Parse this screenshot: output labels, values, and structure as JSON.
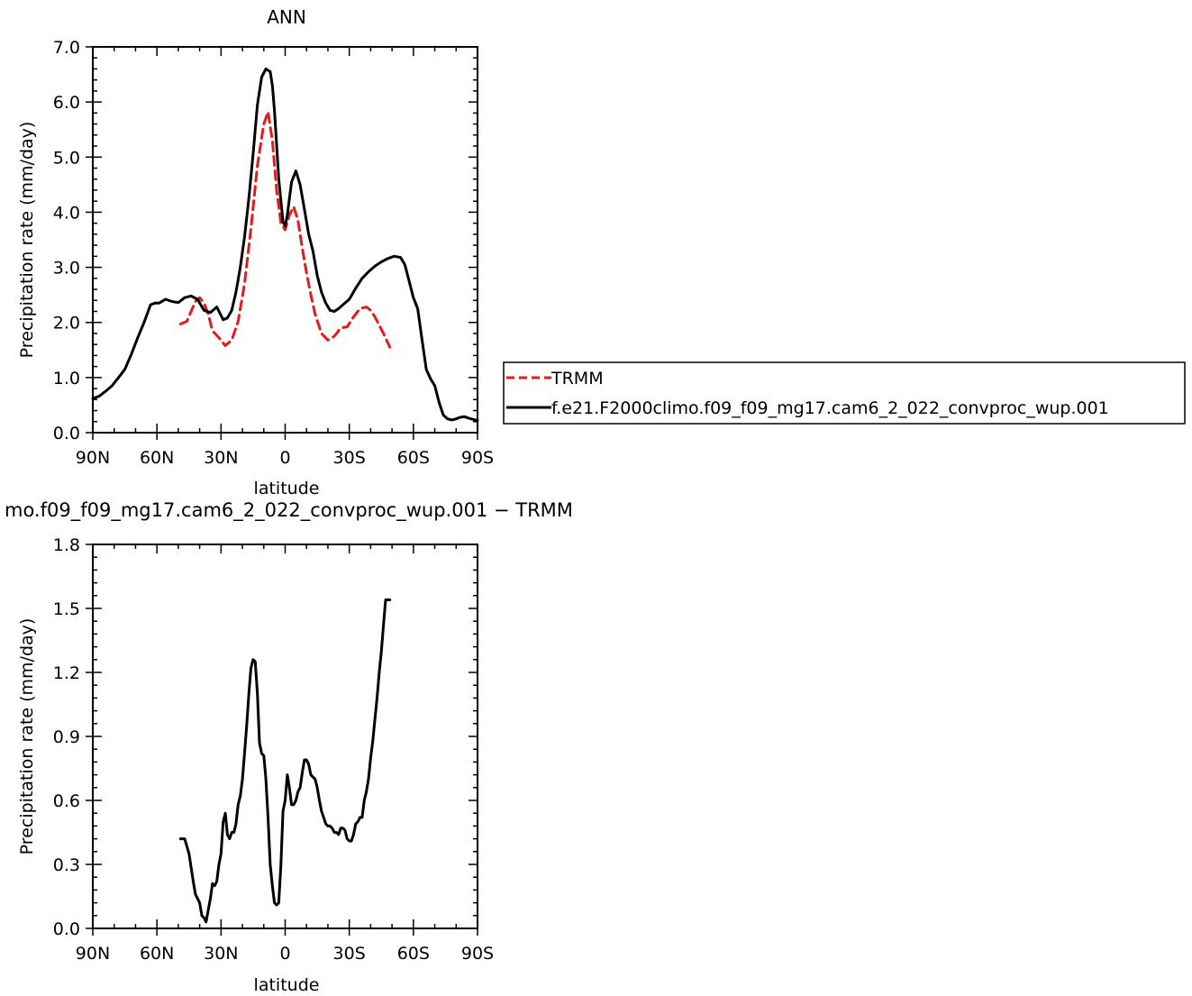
{
  "chart_data": [
    {
      "type": "line",
      "title": "ANN",
      "xlabel": "latitude",
      "ylabel": "Precipitation rate (mm/day)",
      "xlim": [
        -90,
        90
      ],
      "ylim": [
        0,
        7
      ],
      "xticks": [
        -90,
        -60,
        -30,
        0,
        30,
        60,
        90
      ],
      "xticklabels": [
        "90N",
        "60N",
        "30N",
        "0",
        "30S",
        "60S",
        "90S"
      ],
      "yticks": [
        0,
        1,
        2,
        3,
        4,
        5,
        6,
        7
      ],
      "yticklabels": [
        "0.0",
        "1.0",
        "2.0",
        "3.0",
        "4.0",
        "5.0",
        "6.0",
        "7.0"
      ],
      "legend": "right",
      "series": [
        {
          "name": "TRMM",
          "color": "#e41a1c",
          "dash": true,
          "x": [
            -49,
            -46,
            -44,
            -42,
            -40,
            -38,
            -36,
            -34,
            -31,
            -28,
            -25,
            -22,
            -19,
            -16,
            -13,
            -10,
            -8,
            -6,
            -4,
            -2,
            0,
            2,
            4,
            6,
            8,
            10,
            12,
            14,
            17,
            20,
            23,
            26,
            29,
            32,
            35,
            38,
            40,
            42,
            44,
            46,
            49
          ],
          "y": [
            1.97,
            2.02,
            2.2,
            2.38,
            2.45,
            2.35,
            2.15,
            1.85,
            1.72,
            1.58,
            1.68,
            2.02,
            2.7,
            3.7,
            4.85,
            5.6,
            5.82,
            5.3,
            4.4,
            3.8,
            3.68,
            3.95,
            4.1,
            3.85,
            3.35,
            2.9,
            2.5,
            2.15,
            1.8,
            1.68,
            1.75,
            1.9,
            1.92,
            2.1,
            2.25,
            2.28,
            2.22,
            2.1,
            1.95,
            1.8,
            1.55
          ]
        },
        {
          "name": "f.e21.F2000climo.f09_f09_mg17.cam6_2_022_convproc_wup.001",
          "color": "#000000",
          "dash": false,
          "x": [
            -90,
            -87,
            -84,
            -81,
            -78,
            -75,
            -72,
            -69,
            -66,
            -63,
            -61,
            -59,
            -56,
            -53,
            -50,
            -47,
            -44,
            -41,
            -38,
            -35,
            -32,
            -29,
            -27,
            -25,
            -23,
            -21,
            -19,
            -17,
            -15,
            -13,
            -11,
            -9,
            -7,
            -6,
            -5,
            -3,
            -1,
            0,
            1,
            3,
            5,
            7,
            9,
            11,
            13,
            15,
            17,
            19,
            21,
            23,
            25,
            27,
            30,
            33,
            36,
            39,
            42,
            45,
            48,
            51,
            54,
            56,
            58,
            60,
            62,
            64,
            66,
            68,
            70,
            72,
            74,
            76,
            78,
            80,
            82,
            84,
            86,
            88,
            90
          ],
          "y": [
            0.62,
            0.66,
            0.75,
            0.85,
            1.0,
            1.15,
            1.42,
            1.72,
            2.0,
            2.32,
            2.35,
            2.35,
            2.42,
            2.38,
            2.36,
            2.45,
            2.48,
            2.42,
            2.22,
            2.18,
            2.28,
            2.05,
            2.08,
            2.22,
            2.55,
            3.0,
            3.55,
            4.25,
            5.05,
            5.95,
            6.45,
            6.6,
            6.55,
            6.3,
            5.85,
            4.6,
            3.82,
            3.75,
            3.95,
            4.55,
            4.75,
            4.5,
            4.05,
            3.6,
            3.3,
            2.85,
            2.55,
            2.35,
            2.22,
            2.2,
            2.25,
            2.32,
            2.42,
            2.62,
            2.8,
            2.92,
            3.02,
            3.1,
            3.16,
            3.2,
            3.18,
            3.05,
            2.75,
            2.45,
            2.25,
            1.7,
            1.15,
            0.98,
            0.85,
            0.55,
            0.32,
            0.25,
            0.23,
            0.25,
            0.28,
            0.29,
            0.26,
            0.24,
            0.22
          ]
        }
      ]
    },
    {
      "type": "line",
      "title": "mo.f09_f09_mg17.cam6_2_022_convproc_wup.001 − TRMM",
      "xlabel": "latitude",
      "ylabel": "Precipitation rate (mm/day)",
      "xlim": [
        -90,
        90
      ],
      "ylim": [
        0,
        1.8
      ],
      "xticks": [
        -90,
        -60,
        -30,
        0,
        30,
        60,
        90
      ],
      "xticklabels": [
        "90N",
        "60N",
        "30N",
        "0",
        "30S",
        "60S",
        "90S"
      ],
      "yticks": [
        0,
        0.3,
        0.6,
        0.9,
        1.2,
        1.5,
        1.8
      ],
      "yticklabels": [
        "0.0",
        "0.3",
        "0.6",
        "0.9",
        "1.2",
        "1.5",
        "1.8"
      ],
      "series": [
        {
          "color": "#000000",
          "dash": false,
          "x": [
            -49,
            -47,
            -45,
            -43,
            -42,
            -40,
            -39,
            -38,
            -37,
            -35,
            -34,
            -33,
            -32,
            -31,
            -30,
            -29,
            -28,
            -27,
            -26,
            -25,
            -24,
            -23,
            -22,
            -21,
            -20,
            -19,
            -18,
            -17,
            -16,
            -15,
            -14,
            -13,
            -12,
            -11,
            -10,
            -9,
            -8,
            -7,
            -6,
            -5,
            -4,
            -3,
            -2,
            -1,
            0,
            1,
            2,
            3,
            4,
            5,
            6,
            7,
            8,
            9,
            10,
            11,
            12,
            13,
            14,
            15,
            16,
            17,
            18,
            19,
            20,
            21,
            22,
            23,
            24,
            25,
            26,
            27,
            28,
            29,
            30,
            31,
            32,
            33,
            34,
            35,
            36,
            37,
            38,
            39,
            40,
            41,
            42,
            43,
            44,
            45,
            46,
            47,
            48,
            49
          ],
          "y": [
            0.42,
            0.42,
            0.35,
            0.22,
            0.16,
            0.12,
            0.06,
            0.05,
            0.03,
            0.14,
            0.21,
            0.2,
            0.22,
            0.3,
            0.35,
            0.5,
            0.54,
            0.44,
            0.42,
            0.45,
            0.45,
            0.49,
            0.58,
            0.62,
            0.7,
            0.82,
            0.95,
            1.1,
            1.22,
            1.26,
            1.25,
            1.1,
            0.87,
            0.82,
            0.81,
            0.7,
            0.52,
            0.3,
            0.2,
            0.12,
            0.11,
            0.12,
            0.3,
            0.55,
            0.6,
            0.72,
            0.66,
            0.58,
            0.58,
            0.6,
            0.64,
            0.66,
            0.73,
            0.79,
            0.79,
            0.77,
            0.72,
            0.71,
            0.7,
            0.66,
            0.6,
            0.55,
            0.52,
            0.49,
            0.48,
            0.48,
            0.47,
            0.45,
            0.45,
            0.44,
            0.47,
            0.47,
            0.46,
            0.42,
            0.41,
            0.41,
            0.44,
            0.49,
            0.5,
            0.52,
            0.52,
            0.6,
            0.64,
            0.7,
            0.8,
            0.88,
            0.98,
            1.08,
            1.2,
            1.3,
            1.42,
            1.54,
            1.54,
            1.54
          ]
        }
      ]
    }
  ]
}
